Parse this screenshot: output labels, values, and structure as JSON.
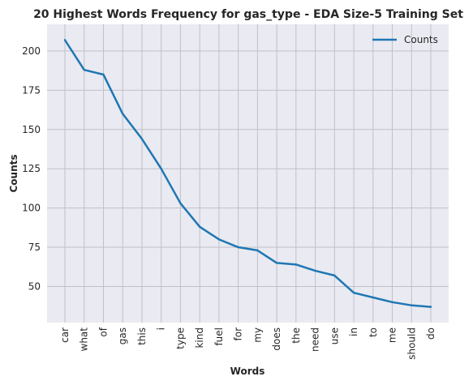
{
  "chart_data": {
    "type": "line",
    "title": "20 Highest Words Frequency for gas_type - EDA Size-5 Training Set",
    "xlabel": "Words",
    "ylabel": "Counts",
    "categories": [
      "car",
      "what",
      "of",
      "gas",
      "this",
      "i",
      "type",
      "kind",
      "fuel",
      "for",
      "my",
      "does",
      "the",
      "need",
      "use",
      "in",
      "to",
      "me",
      "should",
      "do"
    ],
    "series": [
      {
        "name": "Counts",
        "values": [
          207,
          188,
          185,
          160,
          144,
          125,
          103,
          88,
          80,
          75,
          73,
          65,
          64,
          60,
          57,
          46,
          43,
          40,
          38,
          37
        ]
      }
    ],
    "ylim": [
      27,
      217
    ],
    "yticks": [
      50,
      75,
      100,
      125,
      150,
      175,
      200
    ],
    "grid": true,
    "legend": "top-right",
    "colors": {
      "line": "#1f77b4",
      "background": "#eaeaf2",
      "grid": "#c0c0c8"
    }
  }
}
